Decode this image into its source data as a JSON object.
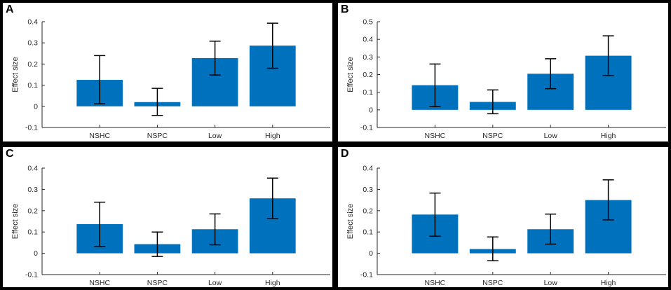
{
  "chart_data": [
    {
      "panel": "A",
      "type": "bar",
      "ylabel": "Effect size",
      "categories": [
        "NSHC",
        "NSPC",
        "Low",
        "High"
      ],
      "values": [
        0.125,
        0.02,
        0.228,
        0.287
      ],
      "error_low": [
        0.012,
        -0.043,
        0.148,
        0.18
      ],
      "error_high": [
        0.24,
        0.085,
        0.308,
        0.393
      ],
      "ylim": [
        -0.1,
        0.4
      ],
      "yticks": [
        -0.1,
        0,
        0.1,
        0.2,
        0.3,
        0.4
      ],
      "ytick_labels": [
        "-0.1",
        "0",
        "0.1",
        "0.2",
        "0.3",
        "0.4"
      ],
      "bar_color": "#0072BD"
    },
    {
      "panel": "B",
      "type": "bar",
      "ylabel": "Effect size",
      "categories": [
        "NSHC",
        "NSPC",
        "Low",
        "High"
      ],
      "values": [
        0.14,
        0.045,
        0.205,
        0.307
      ],
      "error_low": [
        0.018,
        -0.022,
        0.12,
        0.195
      ],
      "error_high": [
        0.26,
        0.113,
        0.29,
        0.42
      ],
      "ylim": [
        -0.1,
        0.5
      ],
      "yticks": [
        -0.1,
        0,
        0.1,
        0.2,
        0.3,
        0.4,
        0.5
      ],
      "ytick_labels": [
        "-0.1",
        "0",
        "0.1",
        "0.2",
        "0.3",
        "0.4",
        "0.5"
      ],
      "bar_color": "#0072BD"
    },
    {
      "panel": "C",
      "type": "bar",
      "ylabel": "Effect size",
      "categories": [
        "NSHC",
        "NSPC",
        "Low",
        "High"
      ],
      "values": [
        0.137,
        0.043,
        0.113,
        0.258
      ],
      "error_low": [
        0.032,
        -0.015,
        0.04,
        0.163
      ],
      "error_high": [
        0.24,
        0.1,
        0.185,
        0.353
      ],
      "ylim": [
        -0.1,
        0.4
      ],
      "yticks": [
        -0.1,
        0,
        0.1,
        0.2,
        0.3,
        0.4
      ],
      "ytick_labels": [
        "-0.1",
        "0",
        "0.1",
        "0.2",
        "0.3",
        "0.4"
      ],
      "bar_color": "#0072BD"
    },
    {
      "panel": "D",
      "type": "bar",
      "ylabel": "Effect size",
      "categories": [
        "NSHC",
        "NSPC",
        "Low",
        "High"
      ],
      "values": [
        0.182,
        0.02,
        0.113,
        0.25
      ],
      "error_low": [
        0.08,
        -0.035,
        0.043,
        0.157
      ],
      "error_high": [
        0.283,
        0.077,
        0.184,
        0.345
      ],
      "ylim": [
        -0.1,
        0.4
      ],
      "yticks": [
        -0.1,
        0,
        0.1,
        0.2,
        0.3,
        0.4
      ],
      "ytick_labels": [
        "-0.1",
        "0",
        "0.1",
        "0.2",
        "0.3",
        "0.4"
      ],
      "bar_color": "#0072BD"
    }
  ]
}
